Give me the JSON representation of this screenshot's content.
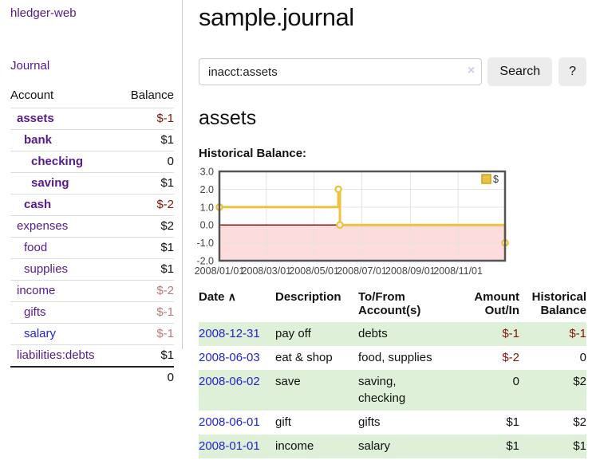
{
  "colors": {
    "link_purple": "#551a8b",
    "link_blue": "#2323d5",
    "neg_strong": "#84150c",
    "neg_soft": "#b97a7a",
    "row_green": "#dff0d8",
    "chart_line": "#edc240",
    "chart_line_dark": "#c9a227",
    "chart_border": "#545454",
    "chart_grid": "#e3e3e3",
    "chart_neg_fill": "#fcdcdc",
    "chart_zero": "#8b0000",
    "chart_text": "#444444"
  },
  "app": {
    "title": "hledger-web"
  },
  "sidebar": {
    "nav_journal": "Journal",
    "header": {
      "account": "Account",
      "balance": "Balance"
    },
    "accounts": [
      {
        "name": "assets",
        "balance": "$-1",
        "depth": 1,
        "bold": true,
        "link_color": "purple",
        "balance_class": "neg"
      },
      {
        "name": "bank",
        "balance": "$1",
        "depth": 2,
        "bold": true,
        "link_color": "purple",
        "balance_class": ""
      },
      {
        "name": "checking",
        "balance": "0",
        "depth": 3,
        "bold": true,
        "link_color": "purple",
        "balance_class": ""
      },
      {
        "name": "saving",
        "balance": "$1",
        "depth": 3,
        "bold": true,
        "link_color": "purple",
        "balance_class": ""
      },
      {
        "name": "cash",
        "balance": "$-2",
        "depth": 2,
        "bold": true,
        "link_color": "purple",
        "balance_class": "neg"
      },
      {
        "name": "expenses",
        "balance": "$2",
        "depth": 1,
        "bold": false,
        "link_color": "purple",
        "balance_class": ""
      },
      {
        "name": "food",
        "balance": "$1",
        "depth": 2,
        "bold": false,
        "link_color": "purple",
        "balance_class": ""
      },
      {
        "name": "supplies",
        "balance": "$1",
        "depth": 2,
        "bold": false,
        "link_color": "purple",
        "balance_class": ""
      },
      {
        "name": "income",
        "balance": "$-2",
        "depth": 1,
        "bold": false,
        "link_color": "purple",
        "balance_class": "neg-muted"
      },
      {
        "name": "gifts",
        "balance": "$-1",
        "depth": 2,
        "bold": false,
        "link_color": "purple",
        "balance_class": "neg-muted"
      },
      {
        "name": "salary",
        "balance": "$-1",
        "depth": 2,
        "bold": false,
        "link_color": "blue",
        "balance_class": "neg-muted"
      },
      {
        "name": "liabilities:debts",
        "balance": "$1",
        "depth": 1,
        "bold": false,
        "link_color": "purple",
        "balance_class": ""
      }
    ],
    "total": "0"
  },
  "main": {
    "title": "sample.journal",
    "search": {
      "value": "inacct:assets",
      "clear_icon": "×",
      "button_label": "Search",
      "help_label": "?"
    },
    "account_heading": "assets",
    "chart_label": "Historical Balance:"
  },
  "chart_data": {
    "type": "line",
    "step": true,
    "title": "Historical Balance:",
    "series": [
      {
        "name": "$",
        "points": [
          [
            "2008-01-01",
            1
          ],
          [
            "2008-06-01",
            2
          ],
          [
            "2008-06-03",
            0
          ],
          [
            "2008-12-31",
            -1
          ]
        ]
      }
    ],
    "xrange": [
      "2008-01-01",
      "2008-12-31"
    ],
    "ylim": [
      -2,
      3
    ],
    "yticks": [
      3.0,
      2.0,
      1.0,
      0.0,
      -1.0,
      -2.0
    ],
    "xticks": [
      "2008/01/01",
      "2008/03/01",
      "2008/05/01",
      "2008/07/01",
      "2008/09/01",
      "2008/11/01"
    ],
    "legend": "$",
    "legend_position": "top-right",
    "grid": true,
    "negative_region_shaded": true
  },
  "register": {
    "columns": {
      "date": "Date",
      "description": "Description",
      "accounts": "To/From Account(s)",
      "amount": "Amount Out/In",
      "balance": "Historical Balance"
    },
    "sort_icon": "∧",
    "rows": [
      {
        "date": "2008-12-31",
        "description": "pay off",
        "accounts": "debts",
        "amount": "$-1",
        "balance": "$-1",
        "amount_neg": true,
        "balance_neg": true,
        "shaded": true
      },
      {
        "date": "2008-06-03",
        "description": "eat & shop",
        "accounts": "food, supplies",
        "amount": "$-2",
        "balance": "0",
        "amount_neg": true,
        "balance_neg": false,
        "shaded": false
      },
      {
        "date": "2008-06-02",
        "description": "save",
        "accounts": "saving,\nchecking",
        "amount": "0",
        "balance": "$2",
        "amount_neg": false,
        "balance_neg": false,
        "shaded": true
      },
      {
        "date": "2008-06-01",
        "description": "gift",
        "accounts": "gifts",
        "amount": "$1",
        "balance": "$2",
        "amount_neg": false,
        "balance_neg": false,
        "shaded": false
      },
      {
        "date": "2008-01-01",
        "description": "income",
        "accounts": "salary",
        "amount": "$1",
        "balance": "$1",
        "amount_neg": false,
        "balance_neg": false,
        "shaded": true
      }
    ]
  }
}
